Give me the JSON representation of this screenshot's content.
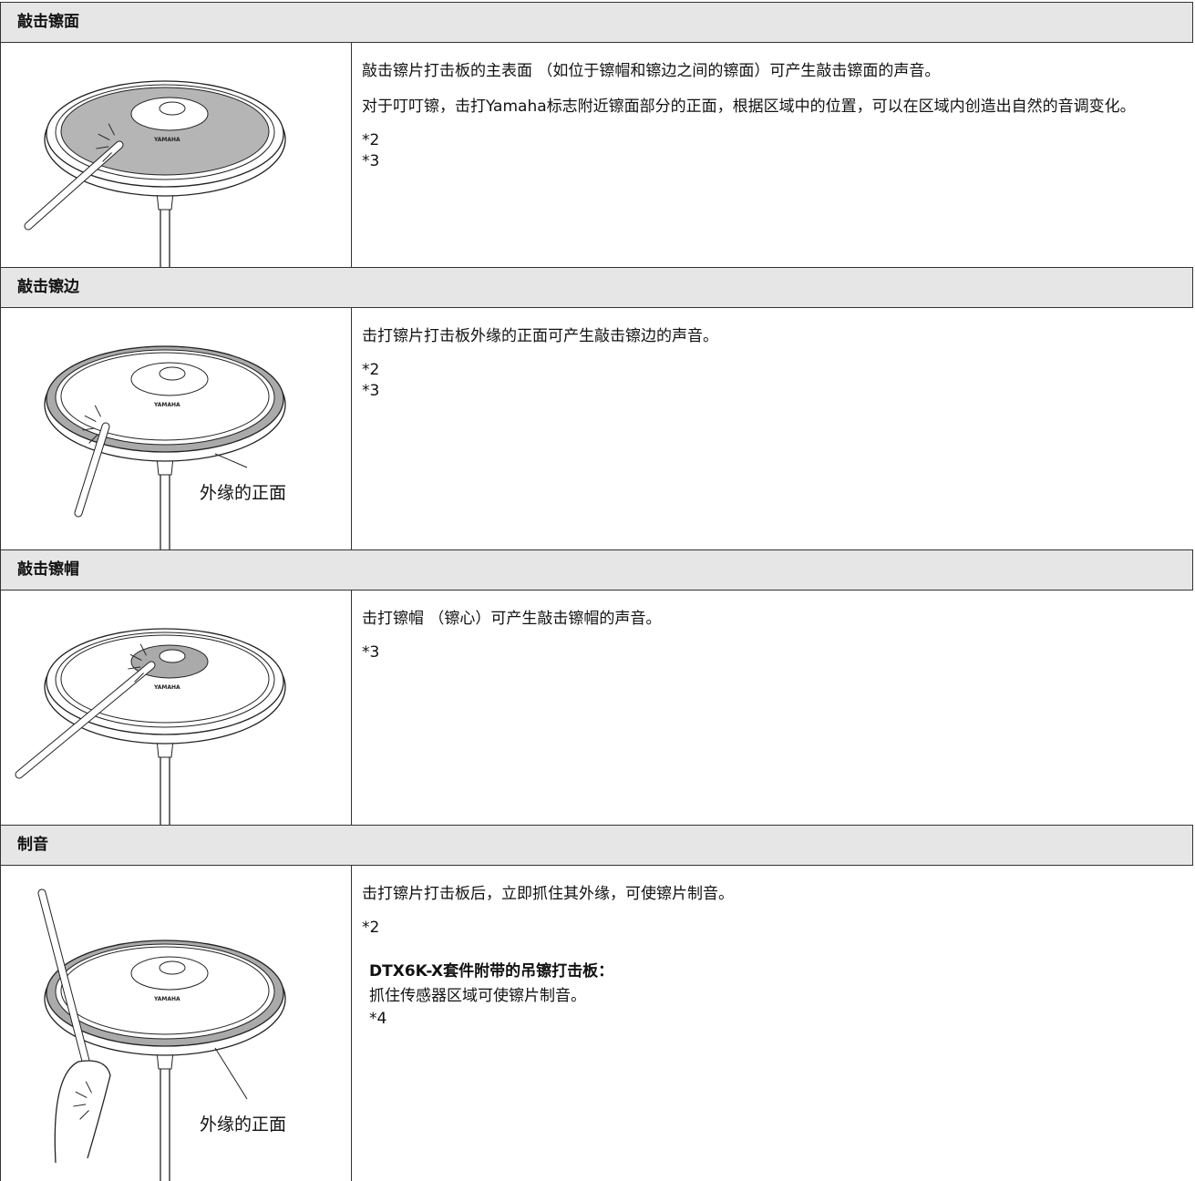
{
  "logo": "YAMAHA",
  "sections": [
    {
      "title": "敲击镲面",
      "paragraphs": [
        "敲击镲片打击板的主表面 （如位于镲帽和镲边之间的镲面）可产生敲击镲面的声音。",
        "对于叮叮镲，击打Yamaha标志附近镲面部分的正面，根据区域中的位置，可以在区域内创造出自然的音调变化。"
      ],
      "refs": [
        "*2",
        "*3"
      ]
    },
    {
      "title": "敲击镲边",
      "caption": "外缘的正面",
      "paragraphs": [
        "击打镲片打击板外缘的正面可产生敲击镲边的声音。"
      ],
      "refs": [
        "*2",
        "*3"
      ]
    },
    {
      "title": "敲击镲帽",
      "paragraphs": [
        "击打镲帽 （镲心）可产生敲击镲帽的声音。"
      ],
      "refs": [
        "*3"
      ]
    },
    {
      "title": "制音",
      "caption": "外缘的正面",
      "paragraphs": [
        "击打镲片打击板后，立即抓住其外缘，可使镲片制音。"
      ],
      "refs": [
        "*2"
      ],
      "note": {
        "title": "DTX6K-X套件附带的吊镲打击板：",
        "text": "抓住传感器区域可使镲片制音。",
        "refs": [
          "*4"
        ]
      }
    }
  ]
}
